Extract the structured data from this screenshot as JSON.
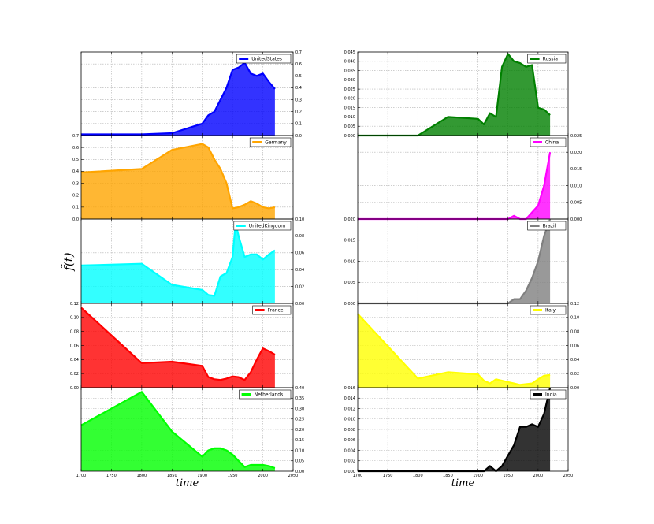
{
  "figure": {
    "xlabel": "time",
    "ylabel": "f̃(t)"
  },
  "chart_data": [
    {
      "type": "area",
      "name": "UnitedStates",
      "color": "#0000ff",
      "col": 0,
      "row": 0,
      "y_axis": "right",
      "xlim": [
        1700,
        2050
      ],
      "ylim": [
        0,
        0.7
      ],
      "yticks": [
        "0.0",
        "0.1",
        "0.2",
        "0.3",
        "0.4",
        "0.5",
        "0.6",
        "0.7"
      ],
      "x": [
        1700,
        1800,
        1850,
        1900,
        1910,
        1920,
        1930,
        1940,
        1950,
        1960,
        1970,
        1980,
        1990,
        2000,
        2010,
        2020
      ],
      "y": [
        0.01,
        0.01,
        0.02,
        0.1,
        0.17,
        0.2,
        0.3,
        0.4,
        0.55,
        0.57,
        0.61,
        0.52,
        0.5,
        0.52,
        0.45,
        0.39
      ]
    },
    {
      "type": "area",
      "name": "Germany",
      "color": "#ffa500",
      "col": 0,
      "row": 1,
      "y_axis": "left",
      "xlim": [
        1700,
        2050
      ],
      "ylim": [
        0,
        0.7
      ],
      "yticks": [
        "0.0",
        "0.1",
        "0.2",
        "0.3",
        "0.4",
        "0.5",
        "0.6",
        "0.7"
      ],
      "x": [
        1700,
        1800,
        1850,
        1900,
        1910,
        1920,
        1930,
        1940,
        1950,
        1960,
        1970,
        1980,
        1990,
        2000,
        2010,
        2020
      ],
      "y": [
        0.39,
        0.42,
        0.58,
        0.63,
        0.6,
        0.5,
        0.42,
        0.3,
        0.09,
        0.1,
        0.12,
        0.15,
        0.13,
        0.1,
        0.09,
        0.1
      ]
    },
    {
      "type": "area",
      "name": "UnitedKingdom",
      "color": "#00ffff",
      "col": 0,
      "row": 2,
      "y_axis": "right",
      "xlim": [
        1700,
        2050
      ],
      "ylim": [
        0,
        0.1
      ],
      "yticks": [
        "0.00",
        "0.02",
        "0.04",
        "0.06",
        "0.08",
        "0.10"
      ],
      "x": [
        1700,
        1800,
        1850,
        1900,
        1910,
        1920,
        1930,
        1940,
        1950,
        1955,
        1960,
        1970,
        1980,
        1990,
        2000,
        2010,
        2020
      ],
      "y": [
        0.045,
        0.047,
        0.022,
        0.016,
        0.01,
        0.009,
        0.032,
        0.036,
        0.055,
        0.095,
        0.08,
        0.055,
        0.058,
        0.058,
        0.052,
        0.058,
        0.063
      ]
    },
    {
      "type": "area",
      "name": "France",
      "color": "#ff0000",
      "col": 0,
      "row": 3,
      "y_axis": "left",
      "xlim": [
        1700,
        2050
      ],
      "ylim": [
        0,
        0.12
      ],
      "yticks": [
        "0.00",
        "0.02",
        "0.04",
        "0.06",
        "0.08",
        "0.10",
        "0.12"
      ],
      "x": [
        1700,
        1800,
        1850,
        1900,
        1910,
        1920,
        1930,
        1940,
        1950,
        1960,
        1970,
        1980,
        1990,
        2000,
        2010,
        2020
      ],
      "y": [
        0.114,
        0.035,
        0.037,
        0.031,
        0.015,
        0.012,
        0.011,
        0.013,
        0.016,
        0.015,
        0.011,
        0.022,
        0.04,
        0.056,
        0.052,
        0.047
      ]
    },
    {
      "type": "area",
      "name": "Netherlands",
      "color": "#00ff00",
      "col": 0,
      "row": 4,
      "y_axis": "right",
      "xlim": [
        1700,
        2050
      ],
      "ylim": [
        0,
        0.4
      ],
      "yticks": [
        "0.00",
        "0.05",
        "0.10",
        "0.15",
        "0.20",
        "0.25",
        "0.30",
        "0.35",
        "0.40"
      ],
      "x": [
        1700,
        1800,
        1850,
        1900,
        1910,
        1920,
        1930,
        1940,
        1950,
        1960,
        1970,
        1980,
        1990,
        2000,
        2010,
        2020
      ],
      "y": [
        0.22,
        0.38,
        0.19,
        0.07,
        0.1,
        0.11,
        0.11,
        0.1,
        0.08,
        0.05,
        0.02,
        0.03,
        0.03,
        0.03,
        0.025,
        0.015
      ]
    },
    {
      "type": "area",
      "name": "Russia",
      "color": "#008000",
      "col": 1,
      "row": 0,
      "y_axis": "left",
      "xlim": [
        1700,
        2050
      ],
      "ylim": [
        0,
        0.045
      ],
      "yticks": [
        "0.000",
        "0.005",
        "0.010",
        "0.015",
        "0.020",
        "0.025",
        "0.030",
        "0.035",
        "0.040",
        "0.045"
      ],
      "x": [
        1700,
        1800,
        1850,
        1900,
        1910,
        1920,
        1930,
        1940,
        1950,
        1960,
        1970,
        1980,
        1990,
        2000,
        2010,
        2020
      ],
      "y": [
        0.0,
        0.0,
        0.01,
        0.009,
        0.006,
        0.012,
        0.01,
        0.037,
        0.044,
        0.04,
        0.039,
        0.037,
        0.038,
        0.015,
        0.014,
        0.011
      ]
    },
    {
      "type": "area",
      "name": "China",
      "color": "#ff00ff",
      "col": 1,
      "row": 1,
      "y_axis": "right",
      "xlim": [
        1700,
        2050
      ],
      "ylim": [
        0,
        0.025
      ],
      "yticks": [
        "0.000",
        "0.005",
        "0.010",
        "0.015",
        "0.020",
        "0.025"
      ],
      "x": [
        1700,
        1800,
        1850,
        1900,
        1950,
        1960,
        1970,
        1980,
        1990,
        2000,
        2010,
        2020
      ],
      "y": [
        0.0,
        0.0,
        0.0,
        0.0,
        0.0,
        0.001,
        0.0,
        0.0,
        0.002,
        0.004,
        0.01,
        0.02
      ]
    },
    {
      "type": "area",
      "name": "Brazil",
      "color": "#808080",
      "col": 1,
      "row": 2,
      "y_axis": "left",
      "xlim": [
        1700,
        2050
      ],
      "ylim": [
        0,
        0.02
      ],
      "yticks": [
        "0.000",
        "0.005",
        "0.010",
        "0.015",
        "0.020"
      ],
      "x": [
        1700,
        1800,
        1900,
        1950,
        1960,
        1970,
        1980,
        1990,
        2000,
        2010,
        2020
      ],
      "y": [
        0.0,
        0.0,
        0.0,
        0.0,
        0.001,
        0.001,
        0.003,
        0.006,
        0.01,
        0.016,
        0.02
      ]
    },
    {
      "type": "area",
      "name": "Italy",
      "color": "#ffff00",
      "col": 1,
      "row": 3,
      "y_axis": "right",
      "xlim": [
        1700,
        2050
      ],
      "ylim": [
        0,
        0.12
      ],
      "yticks": [
        "0.00",
        "0.02",
        "0.04",
        "0.06",
        "0.08",
        "0.10",
        "0.12"
      ],
      "x": [
        1700,
        1800,
        1850,
        1900,
        1910,
        1920,
        1930,
        1940,
        1950,
        1960,
        1970,
        1980,
        1990,
        2000,
        2010,
        2020
      ],
      "y": [
        0.105,
        0.013,
        0.022,
        0.019,
        0.01,
        0.006,
        0.012,
        0.01,
        0.008,
        0.006,
        0.004,
        0.005,
        0.006,
        0.012,
        0.017,
        0.018
      ]
    },
    {
      "type": "area",
      "name": "India",
      "color": "#000000",
      "col": 1,
      "row": 4,
      "y_axis": "left",
      "xlim": [
        1700,
        2050
      ],
      "ylim": [
        0,
        0.016
      ],
      "yticks": [
        "0.000",
        "0.002",
        "0.004",
        "0.006",
        "0.008",
        "0.010",
        "0.012",
        "0.014",
        "0.016"
      ],
      "xticks": [
        "1700",
        "1750",
        "1800",
        "1850",
        "1900",
        "1950",
        "2000",
        "2050"
      ],
      "x": [
        1700,
        1800,
        1900,
        1910,
        1920,
        1930,
        1940,
        1950,
        1960,
        1970,
        1980,
        1990,
        2000,
        2010,
        2020
      ],
      "y": [
        0.0,
        0.0,
        0.0,
        0.0,
        0.001,
        0.0,
        0.001,
        0.003,
        0.005,
        0.0085,
        0.0085,
        0.009,
        0.0085,
        0.011,
        0.016
      ]
    }
  ]
}
